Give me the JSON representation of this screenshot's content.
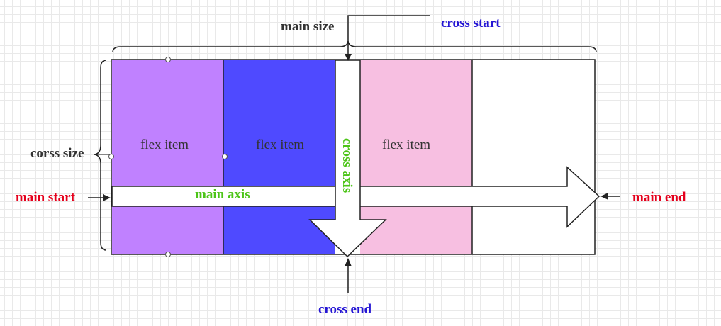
{
  "labels": {
    "main_size": "main size",
    "cross_start": "cross start",
    "cross_size": "corss size",
    "main_start": "main start",
    "main_end": "main end",
    "cross_end": "cross end",
    "main_axis": "main axis",
    "cross_axis": "cross axis"
  },
  "items": [
    {
      "label": "flex item",
      "color": "#c081ff"
    },
    {
      "label": "flex item",
      "color": "#4f4aff"
    },
    {
      "label": "flex item",
      "color": "#f7bfe1"
    }
  ],
  "colors": {
    "red_label": "#e5001c",
    "blue_label": "#2415d4",
    "axis_label": "#4cc417",
    "dark_label": "#333333",
    "stroke": "#222222"
  }
}
